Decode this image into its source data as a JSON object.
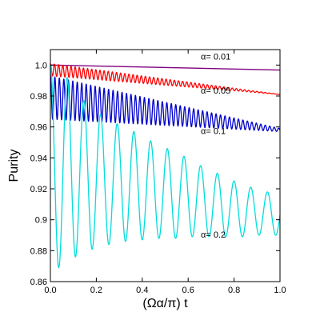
{
  "chart_data": {
    "type": "line",
    "title": "",
    "xlabel": "(Ωα/π) t",
    "ylabel": "Purity",
    "xlim": [
      0.0,
      1.0
    ],
    "ylim": [
      0.86,
      1.01
    ],
    "grid": false,
    "legend": "none",
    "x_ticks": [
      0.0,
      0.2,
      0.4,
      0.6,
      0.8,
      1.0
    ],
    "x_tick_labels": [
      "0.0",
      "0.2",
      "0.4",
      "0.6",
      "0.8",
      "1.0"
    ],
    "y_ticks": [
      0.86,
      0.88,
      0.9,
      0.92,
      0.94,
      0.96,
      0.98,
      1.0
    ],
    "y_tick_labels": [
      "0.86",
      "0.88",
      "0.9",
      "0.92",
      "0.94",
      "0.96",
      "0.98",
      "1.0"
    ],
    "series": [
      {
        "label": "α= 0.01",
        "color": "#800080",
        "points": [
          [
            0.0,
            1.0
          ],
          [
            1.0,
            0.9968
          ]
        ]
      },
      {
        "label": "α= 0.05",
        "color": "#ff0000",
        "oscillation": {
          "center_start": 0.997,
          "center_end": 0.981,
          "amp_start": 0.004,
          "amp_end": 0.0,
          "period": 0.018
        },
        "points": [
          [
            0.0,
            1.0
          ],
          [
            0.1,
            0.994
          ],
          [
            0.2,
            0.992
          ],
          [
            0.4,
            0.989
          ],
          [
            0.6,
            0.986
          ],
          [
            0.8,
            0.983
          ],
          [
            1.0,
            0.981
          ]
        ]
      },
      {
        "label": "α= 0.1",
        "color": "#0000cc",
        "oscillation": {
          "center_start": 0.979,
          "center_end": 0.958,
          "amp_start": 0.014,
          "amp_end": 0.001,
          "period": 0.0195
        },
        "points": [
          [
            0.0,
            1.0
          ],
          [
            0.1,
            0.977
          ],
          [
            0.2,
            0.977
          ],
          [
            0.4,
            0.974
          ],
          [
            0.6,
            0.968
          ],
          [
            0.8,
            0.963
          ],
          [
            1.0,
            0.958
          ]
        ]
      },
      {
        "label": "α= 0.2",
        "color": "#00dddd",
        "oscillation": {
          "maxima": [
            1.0,
            0.992,
            0.977,
            0.968,
            0.962,
            0.957,
            0.951,
            0.946,
            0.941,
            0.935,
            0.93,
            0.925,
            0.921,
            0.918,
            0.915
          ],
          "minima": [
            0.869,
            0.876,
            0.881,
            0.884,
            0.886,
            0.887,
            0.888,
            0.888,
            0.889,
            0.889,
            0.889,
            0.889,
            0.89,
            0.89
          ],
          "period": 0.0727
        },
        "points": [
          [
            0.0,
            1.0
          ],
          [
            0.036,
            0.869
          ],
          [
            0.109,
            0.876
          ],
          [
            0.182,
            0.881
          ],
          [
            0.4,
            0.886
          ],
          [
            0.6,
            0.888
          ],
          [
            0.8,
            0.889
          ],
          [
            1.0,
            0.89
          ]
        ]
      }
    ]
  }
}
